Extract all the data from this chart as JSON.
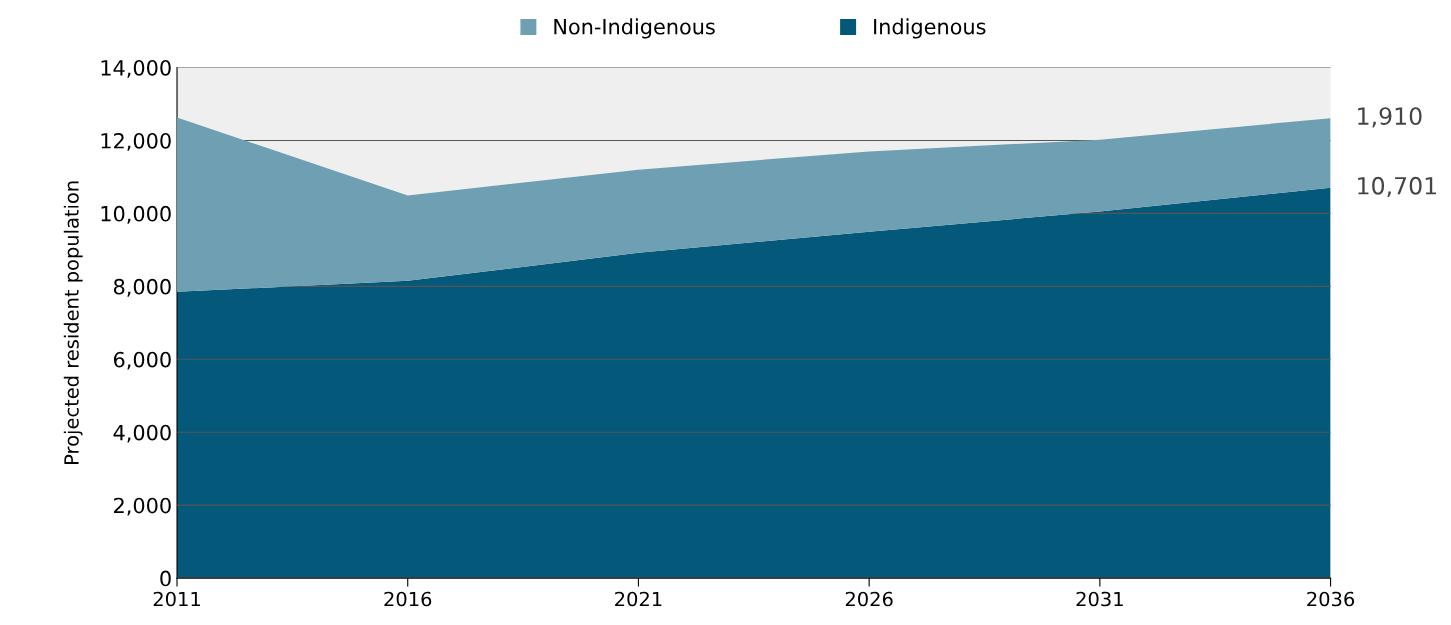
{
  "chart_data": {
    "type": "area",
    "stacked": true,
    "x": [
      2011,
      2016,
      2021,
      2026,
      2031,
      2036
    ],
    "series": [
      {
        "name": "Indigenous",
        "color": "#04587a",
        "values": [
          7850,
          8150,
          8920,
          9500,
          10050,
          10701
        ],
        "value_labels": [
          null,
          null,
          null,
          null,
          null,
          "10,701"
        ]
      },
      {
        "name": "Non-Indigenous",
        "color": "#6f9fb3",
        "values": [
          4780,
          2340,
          2280,
          2200,
          1970,
          1910
        ],
        "value_labels": [
          null,
          null,
          null,
          null,
          null,
          "1,910"
        ]
      }
    ],
    "ylabel": "Projected resident population",
    "xlim": [
      2011,
      2036
    ],
    "xticks": [
      2011,
      2016,
      2021,
      2026,
      2031,
      2036
    ],
    "ylim": [
      0,
      14000
    ],
    "yticks": [
      {
        "value": 0,
        "label": "0"
      },
      {
        "value": 2000,
        "label": "2,000"
      },
      {
        "value": 4000,
        "label": "4,000"
      },
      {
        "value": 6000,
        "label": "6,000"
      },
      {
        "value": 8000,
        "label": "8,000"
      },
      {
        "value": 10000,
        "label": "10,000"
      },
      {
        "value": 12000,
        "label": "12,000"
      },
      {
        "value": 14000,
        "label": "14,000"
      }
    ],
    "grid": "y",
    "legend": "top"
  }
}
